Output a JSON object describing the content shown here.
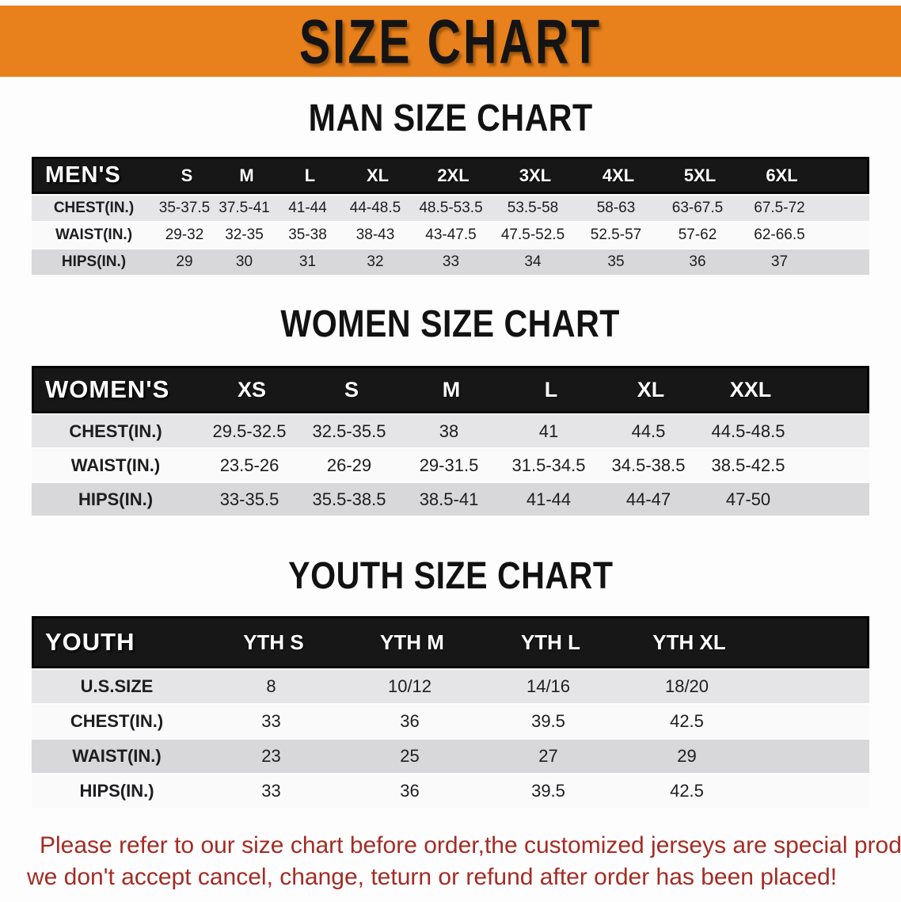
{
  "banner": {
    "title": "SIZE CHART"
  },
  "colors": {
    "banner_bg": "#E8811C",
    "header_bar_bg": "#171717",
    "header_text": "#FFFFFF",
    "row_light_gray": "#E5E5E8",
    "row_white": "#FAFAFB",
    "row_gray": "#D8D8DB",
    "note_red": "#A32C24"
  },
  "sections": [
    {
      "title": "MAN SIZE CHART",
      "label": "MEN'S",
      "sizes": [
        "S",
        "M",
        "L",
        "XL",
        "2XL",
        "3XL",
        "4XL",
        "5XL",
        "6XL"
      ],
      "rows": [
        {
          "label": "CHEST(IN.)",
          "values": [
            "35-37.5",
            "37.5-41",
            "41-44",
            "44-48.5",
            "48.5-53.5",
            "53.5-58",
            "58-63",
            "63-67.5",
            "67.5-72"
          ]
        },
        {
          "label": "WAIST(IN.)",
          "values": [
            "29-32",
            "32-35",
            "35-38",
            "38-43",
            "43-47.5",
            "47.5-52.5",
            "52.5-57",
            "57-62",
            "62-66.5"
          ]
        },
        {
          "label": "HIPS(IN.)",
          "values": [
            "29",
            "30",
            "31",
            "32",
            "33",
            "34",
            "35",
            "36",
            "37"
          ]
        }
      ]
    },
    {
      "title": "WOMEN SIZE CHART",
      "label": "WOMEN'S",
      "sizes": [
        "XS",
        "S",
        "M",
        "L",
        "XL",
        "XXL"
      ],
      "rows": [
        {
          "label": "CHEST(IN.)",
          "values": [
            "29.5-32.5",
            "32.5-35.5",
            "38",
            "41",
            "44.5",
            "44.5-48.5"
          ]
        },
        {
          "label": "WAIST(IN.)",
          "values": [
            "23.5-26",
            "26-29",
            "29-31.5",
            "31.5-34.5",
            "34.5-38.5",
            "38.5-42.5"
          ]
        },
        {
          "label": "HIPS(IN.)",
          "values": [
            "33-35.5",
            "35.5-38.5",
            "38.5-41",
            "41-44",
            "44-47",
            "47-50"
          ]
        }
      ]
    },
    {
      "title": "YOUTH SIZE CHART",
      "label": "YOUTH",
      "sizes": [
        "YTH S",
        "YTH M",
        "YTH L",
        "YTH XL"
      ],
      "rows": [
        {
          "label": "U.S.SIZE",
          "values": [
            "8",
            "10/12",
            "14/16",
            "18/20"
          ]
        },
        {
          "label": "CHEST(IN.)",
          "values": [
            "33",
            "36",
            "39.5",
            "42.5"
          ]
        },
        {
          "label": "WAIST(IN.)",
          "values": [
            "23",
            "25",
            "27",
            "29"
          ]
        },
        {
          "label": "HIPS(IN.)",
          "values": [
            "33",
            "36",
            "39.5",
            "42.5"
          ]
        }
      ]
    }
  ],
  "note": {
    "line1": "Please refer to our size chart before order,the customized jerseys are special products,",
    "line2": "we don't accept cancel, change, teturn or refund after order has been placed!"
  }
}
